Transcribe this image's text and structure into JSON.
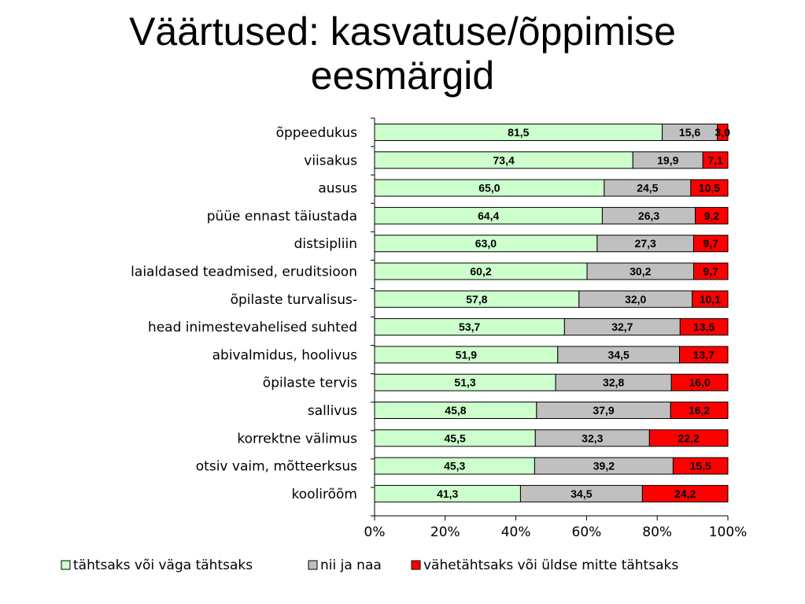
{
  "title": {
    "line1": "Väärtused: kasvatuse/õppimise",
    "line2": "eesmärgid"
  },
  "chart_data": {
    "type": "bar",
    "orientation": "horizontal",
    "stacked": "percent",
    "categories": [
      "õppeedukus",
      "viisakus",
      "ausus",
      "püüe ennast täiustada",
      "distsipliin",
      "laialdased teadmised, eruditsioon",
      "õpilaste turvalisus-",
      "head inimestevahelised suhted",
      "abivalmidus, hoolivus",
      "õpilaste tervis",
      "sallivus",
      "korrektne välimus",
      "otsiv vaim, mõtteerksus",
      "koolirõõm"
    ],
    "series": [
      {
        "name": "tähtsaks või väga tähtsaks",
        "color": "#ccffcc",
        "values": [
          81.5,
          73.4,
          65.0,
          64.4,
          63.0,
          60.2,
          57.8,
          53.7,
          51.9,
          51.3,
          45.8,
          45.5,
          45.3,
          41.3
        ],
        "labels": [
          "81,5",
          "73,4",
          "65,0",
          "64,4",
          "63,0",
          "60,2",
          "57,8",
          "53,7",
          "51,9",
          "51,3",
          "45,8",
          "45,5",
          "45,3",
          "41,3"
        ]
      },
      {
        "name": "nii ja naa",
        "color": "#c0c0c0",
        "values": [
          15.6,
          19.9,
          24.5,
          26.3,
          27.3,
          30.2,
          32.0,
          32.7,
          34.5,
          32.8,
          37.9,
          32.3,
          39.2,
          34.5
        ],
        "labels": [
          "15,6",
          "19,9",
          "24,5",
          "26,3",
          "27,3",
          "30,2",
          "32,0",
          "32,7",
          "34,5",
          "32,8",
          "37,9",
          "32,3",
          "39,2",
          "34,5"
        ]
      },
      {
        "name": "vähetähtsaks või üldse mitte tähtsaks",
        "color": "#ff0000",
        "values": [
          3.0,
          7.1,
          10.5,
          9.2,
          9.7,
          9.7,
          10.1,
          13.5,
          13.7,
          16.0,
          16.2,
          22.2,
          15.5,
          24.2
        ],
        "labels": [
          "3,0",
          "7,1",
          "10,5",
          "9,2",
          "9,7",
          "9,7",
          "10,1",
          "13,5",
          "13,7",
          "16,0",
          "16,2",
          "22,2",
          "15,5",
          "24,2"
        ]
      }
    ],
    "xticks": [
      "0%",
      "20%",
      "40%",
      "60%",
      "80%",
      "100%"
    ],
    "xlim": [
      0,
      100
    ],
    "grid": false,
    "legend_position": "bottom"
  }
}
